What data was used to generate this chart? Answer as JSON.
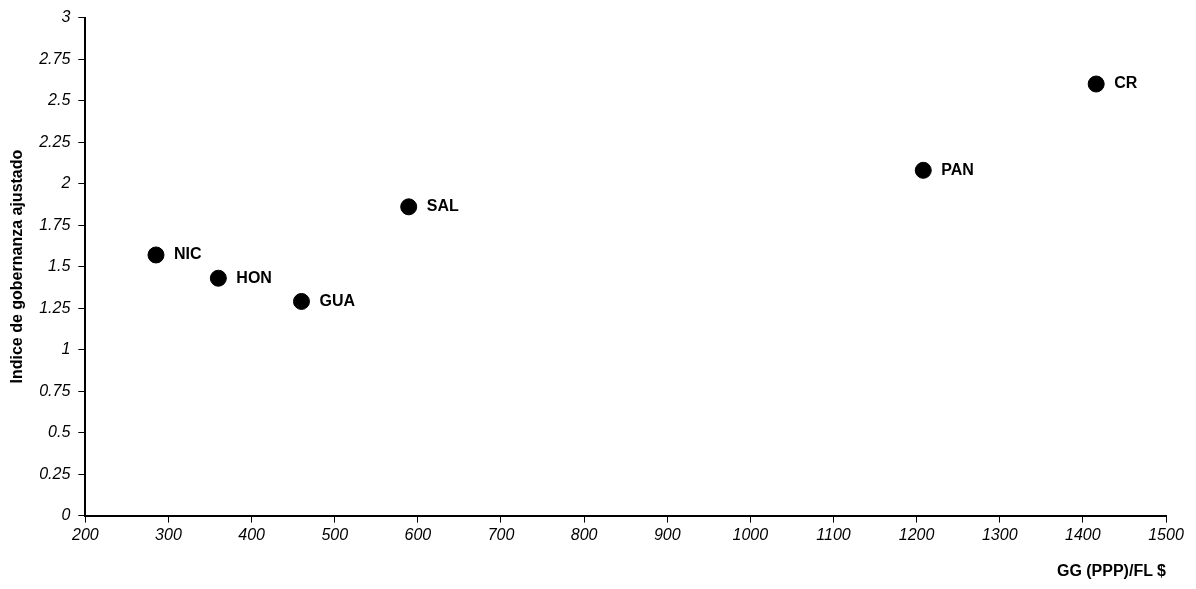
{
  "chart_data": {
    "type": "scatter",
    "xlabel": "GG (PPP)/FL $",
    "ylabel": "Indice de gobernanza ajustado",
    "x": [
      285,
      360,
      460,
      589,
      1208,
      1416
    ],
    "series": [
      {
        "color": "#000000",
        "values": [
          1.57,
          1.43,
          1.29,
          1.86,
          2.08,
          2.6
        ]
      }
    ],
    "marker": "circle",
    "grid": false,
    "legend": false,
    "xlim": [
      200,
      1500
    ],
    "xticks": [
      200,
      300,
      400,
      500,
      600,
      700,
      800,
      900,
      1000,
      1100,
      1200,
      1300,
      1400,
      1500
    ],
    "ylim": [
      0,
      3
    ],
    "yticks": [
      0,
      0.25,
      0.5,
      0.75,
      1,
      1.25,
      1.5,
      1.75,
      2,
      2.25,
      2.5,
      2.75,
      3
    ],
    "annotations": [
      {
        "text": "NIC",
        "x": 285,
        "y": 1.57
      },
      {
        "text": "HON",
        "x": 360,
        "y": 1.43
      },
      {
        "text": "GUA",
        "x": 460,
        "y": 1.29
      },
      {
        "text": "SAL",
        "x": 589,
        "y": 1.86
      },
      {
        "text": "PAN",
        "x": 1208,
        "y": 2.08
      },
      {
        "text": "CR",
        "x": 1416,
        "y": 2.6
      }
    ]
  }
}
